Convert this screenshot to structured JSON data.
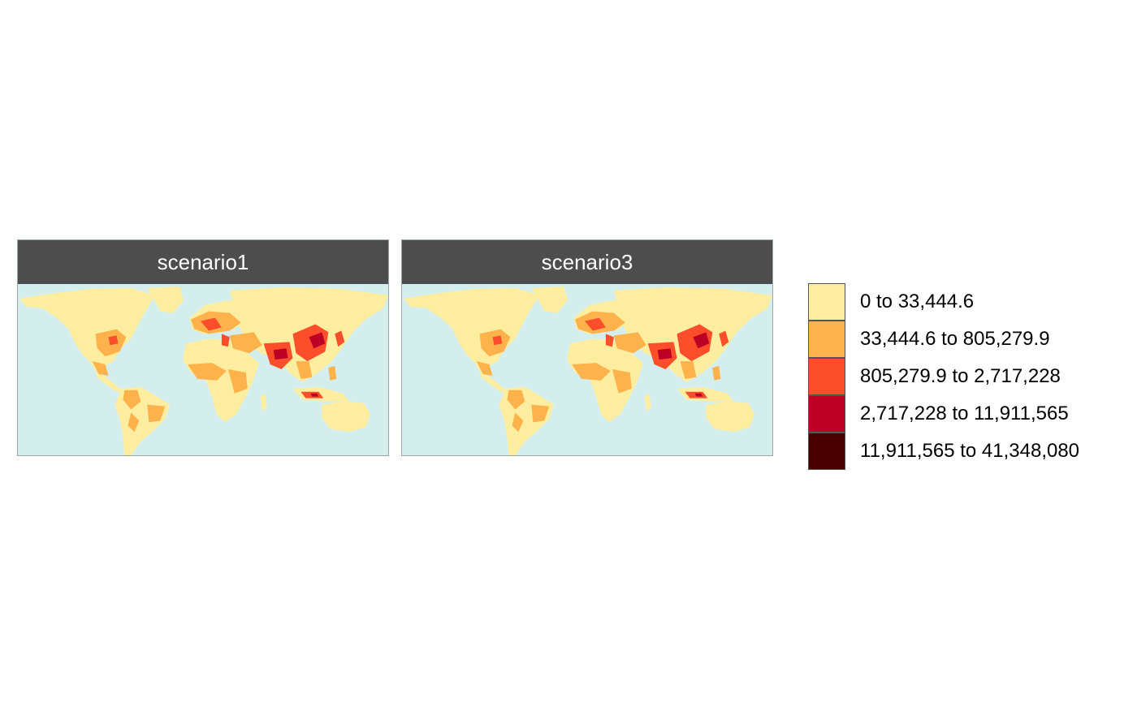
{
  "panels": [
    {
      "title": "scenario1"
    },
    {
      "title": "scenario3"
    }
  ],
  "legend": {
    "items": [
      {
        "label": "0 to 33,444.6",
        "color": "#ffeda0"
      },
      {
        "label": "33,444.6 to 805,279.9",
        "color": "#feb24c"
      },
      {
        "label": "805,279.9 to 2,717,228",
        "color": "#fc4e2a"
      },
      {
        "label": "2,717,228 to 11,911,565",
        "color": "#bd0026"
      },
      {
        "label": "11,911,565 to 41,348,080",
        "color": "#4a0000"
      }
    ]
  },
  "colors": {
    "ocean": "#d4eeee",
    "header": "#4d4d4d"
  }
}
